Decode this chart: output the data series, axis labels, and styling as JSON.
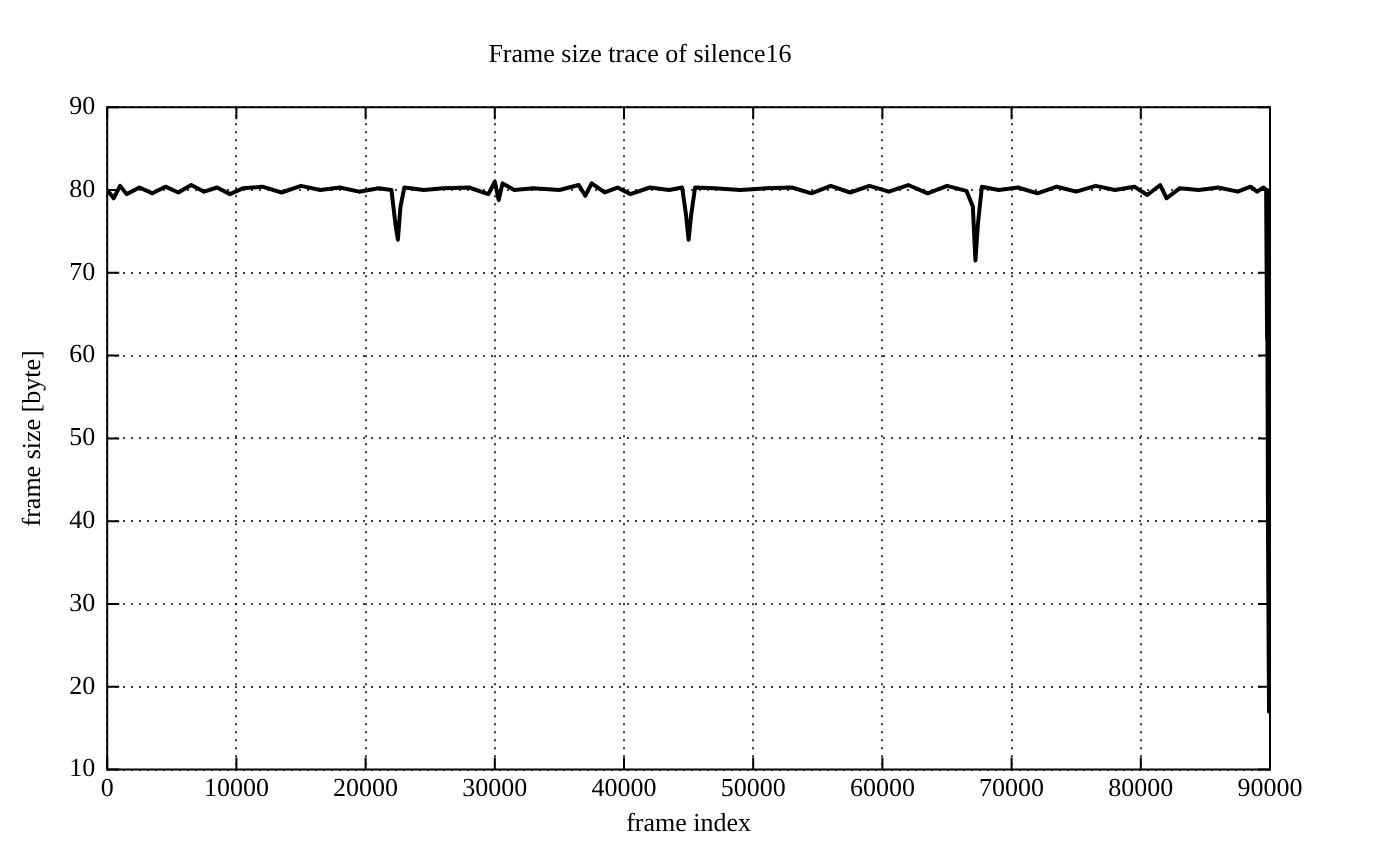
{
  "chart_data": {
    "type": "line",
    "title": "Frame size trace of silence16",
    "xlabel": "frame index",
    "ylabel": "frame size [byte]",
    "xlim": [
      0,
      90000
    ],
    "xticks": [
      0,
      10000,
      20000,
      30000,
      40000,
      50000,
      60000,
      70000,
      80000,
      90000
    ],
    "ylim": [
      10,
      90
    ],
    "yticks": [
      10,
      20,
      30,
      40,
      50,
      60,
      70,
      80,
      90
    ],
    "grid": true,
    "legend": false,
    "marker": "none",
    "line_style": "solid",
    "series": [
      {
        "color": "#000000",
        "x": [
          0,
          500,
          1000,
          1500,
          2500,
          3500,
          4500,
          5500,
          6500,
          7500,
          8500,
          9500,
          10500,
          12000,
          13500,
          15000,
          16500,
          18000,
          19500,
          21000,
          22000,
          22300,
          22500,
          22700,
          23000,
          24500,
          26000,
          28000,
          29500,
          30000,
          30300,
          30600,
          31500,
          33000,
          35000,
          36500,
          37000,
          37500,
          38500,
          39500,
          40500,
          42000,
          43500,
          44500,
          44800,
          45000,
          45200,
          45500,
          47000,
          49000,
          51000,
          53000,
          54500,
          56000,
          57500,
          59000,
          60500,
          62000,
          63500,
          65000,
          66500,
          67000,
          67200,
          67400,
          67700,
          69000,
          70500,
          72000,
          73500,
          75000,
          76500,
          78000,
          79500,
          80500,
          81500,
          82000,
          83000,
          84500,
          86000,
          87500,
          88500,
          89000,
          89500,
          89700,
          89750,
          89800,
          89850,
          89900,
          89950,
          90000
        ],
        "values": [
          80,
          79,
          80.5,
          79.5,
          80.3,
          79.6,
          80.4,
          79.7,
          80.6,
          79.8,
          80.3,
          79.5,
          80.2,
          80.4,
          79.7,
          80.5,
          80,
          80.3,
          79.8,
          80.2,
          80,
          76,
          74,
          78,
          80.3,
          80,
          80.2,
          80.3,
          79.5,
          81,
          78.8,
          80.8,
          80,
          80.2,
          80,
          80.6,
          79.3,
          80.8,
          79.7,
          80.3,
          79.5,
          80.3,
          80,
          80.3,
          77,
          74,
          77,
          80.3,
          80.2,
          80,
          80.2,
          80.3,
          79.6,
          80.5,
          79.7,
          80.5,
          79.8,
          80.6,
          79.6,
          80.5,
          79.9,
          78,
          71.5,
          76,
          80.4,
          80,
          80.3,
          79.6,
          80.4,
          79.8,
          80.5,
          80,
          80.4,
          79.4,
          80.6,
          79,
          80.2,
          80,
          80.3,
          79.8,
          80.4,
          79.8,
          80.3,
          80,
          62,
          75,
          37,
          40,
          17,
          25
        ]
      }
    ]
  }
}
